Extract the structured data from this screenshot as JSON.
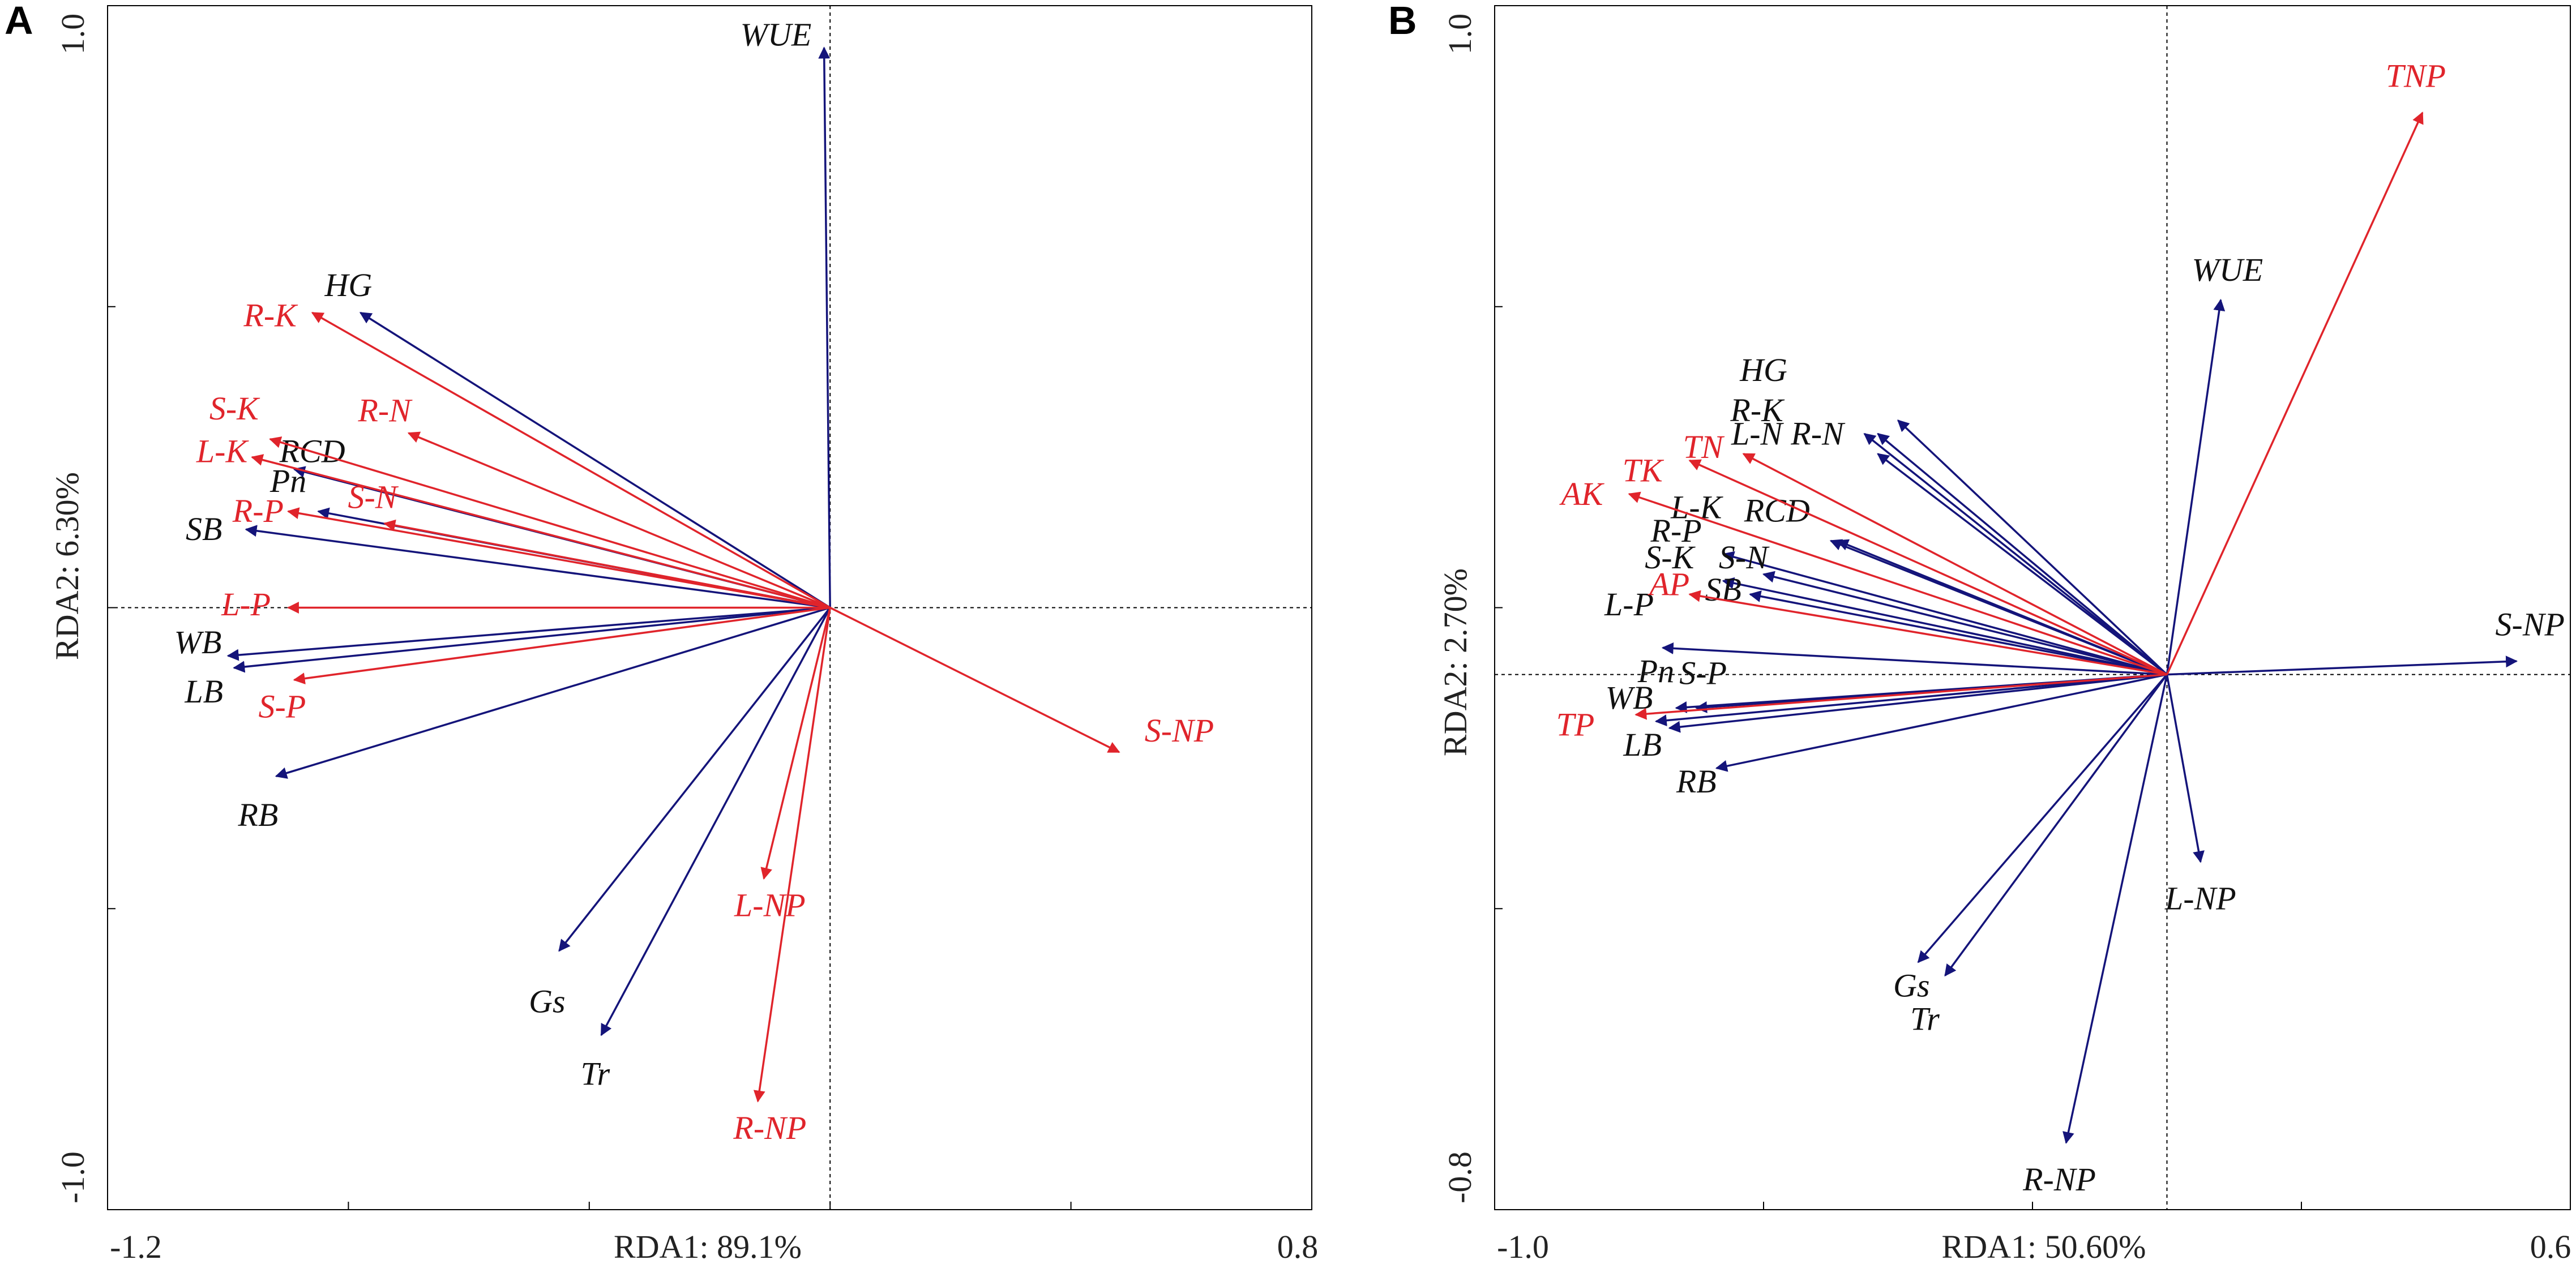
{
  "colors": {
    "species_vector": "#14147a",
    "species_label": "#111111",
    "environment_vector": "#e0242b",
    "environment_label": "#e0242b"
  },
  "chart_data": [
    {
      "type": "biplot",
      "panel_label": "A",
      "xlabel": "RDA1: 89.1%",
      "ylabel": "RDA2: 6.30%",
      "xlim": [
        -1.2,
        0.8
      ],
      "ylim": [
        -1.0,
        1.0
      ],
      "x_tick_labels": [
        "-1.2",
        "0.8"
      ],
      "y_tick_labels": [
        "1.0",
        "-1.0"
      ],
      "vectors": [
        {
          "name": "WUE",
          "group": "response",
          "x": -0.01,
          "y": 0.93,
          "lx": -0.09,
          "ly": 0.946
        },
        {
          "name": "HG",
          "group": "response",
          "x": -0.78,
          "y": 0.49,
          "lx": -0.8,
          "ly": 0.53
        },
        {
          "name": "RCD",
          "group": "response",
          "x": -0.89,
          "y": 0.23,
          "lx": -0.86,
          "ly": 0.254
        },
        {
          "name": "Pn",
          "group": "response",
          "x": -0.85,
          "y": 0.16,
          "lx": -0.9,
          "ly": 0.205
        },
        {
          "name": "SB",
          "group": "response",
          "x": -0.97,
          "y": 0.13,
          "lx": -1.04,
          "ly": 0.125
        },
        {
          "name": "WB",
          "group": "response",
          "x": -1.0,
          "y": -0.08,
          "lx": -1.05,
          "ly": -0.063
        },
        {
          "name": "LB",
          "group": "response",
          "x": -0.99,
          "y": -0.1,
          "lx": -1.04,
          "ly": -0.145
        },
        {
          "name": "RB",
          "group": "response",
          "x": -0.92,
          "y": -0.28,
          "lx": -0.95,
          "ly": -0.35
        },
        {
          "name": "Gs",
          "group": "response",
          "x": -0.45,
          "y": -0.57,
          "lx": -0.47,
          "ly": -0.66
        },
        {
          "name": "Tr",
          "group": "response",
          "x": -0.38,
          "y": -0.71,
          "lx": -0.39,
          "ly": -0.78
        },
        {
          "name": "R-K",
          "group": "environment",
          "x": -0.86,
          "y": 0.49,
          "lx": -0.93,
          "ly": 0.48
        },
        {
          "name": "S-K",
          "group": "environment",
          "x": -0.93,
          "y": 0.28,
          "lx": -0.99,
          "ly": 0.325
        },
        {
          "name": "L-K",
          "group": "environment",
          "x": -0.96,
          "y": 0.25,
          "lx": -1.01,
          "ly": 0.254
        },
        {
          "name": "R-N",
          "group": "environment",
          "x": -0.7,
          "y": 0.29,
          "lx": -0.74,
          "ly": 0.322
        },
        {
          "name": "S-N",
          "group": "environment",
          "x": -0.74,
          "y": 0.14,
          "lx": -0.76,
          "ly": 0.178
        },
        {
          "name": "R-P",
          "group": "environment",
          "x": -0.9,
          "y": 0.16,
          "lx": -0.95,
          "ly": 0.155
        },
        {
          "name": "L-P",
          "group": "environment",
          "x": -0.9,
          "y": 0.0,
          "lx": -0.97,
          "ly": 0.0
        },
        {
          "name": "S-P",
          "group": "environment",
          "x": -0.89,
          "y": -0.12,
          "lx": -0.91,
          "ly": -0.17
        },
        {
          "name": "S-NP",
          "group": "environment",
          "x": 0.48,
          "y": -0.24,
          "lx": 0.58,
          "ly": -0.21
        },
        {
          "name": "L-NP",
          "group": "environment",
          "x": -0.11,
          "y": -0.45,
          "lx": -0.1,
          "ly": -0.5
        },
        {
          "name": "R-NP",
          "group": "environment",
          "x": -0.12,
          "y": -0.82,
          "lx": -0.1,
          "ly": -0.87
        }
      ]
    },
    {
      "type": "biplot",
      "panel_label": "B",
      "xlabel": "RDA1: 50.60%",
      "ylabel": "RDA2: 2.70%",
      "xlim": [
        -1.0,
        0.6
      ],
      "ylim": [
        -0.8,
        1.0
      ],
      "x_tick_labels": [
        "-1.0",
        "0.6"
      ],
      "y_tick_labels": [
        "1.0",
        "-0.8"
      ],
      "vectors": [
        {
          "name": "WUE",
          "group": "response",
          "x": 0.08,
          "y": 0.56,
          "lx": 0.09,
          "ly": 0.6
        },
        {
          "name": "HG",
          "group": "response",
          "x": -0.4,
          "y": 0.38,
          "lx": -0.6,
          "ly": 0.45
        },
        {
          "name": "R-K",
          "group": "response",
          "x": -0.43,
          "y": 0.33,
          "lx": -0.61,
          "ly": 0.39
        },
        {
          "name": "L-N",
          "group": "response",
          "x": -0.45,
          "y": 0.36,
          "lx": -0.61,
          "ly": 0.355
        },
        {
          "name": "R-N",
          "group": "response",
          "x": -0.43,
          "y": 0.36,
          "lx": -0.52,
          "ly": 0.355
        },
        {
          "name": "L-K",
          "group": "response",
          "x": -0.5,
          "y": 0.2,
          "lx": -0.7,
          "ly": 0.245
        },
        {
          "name": "RCD",
          "group": "response",
          "x": -0.49,
          "y": 0.2,
          "lx": -0.58,
          "ly": 0.24
        },
        {
          "name": "R-P",
          "group": "response",
          "x": -0.66,
          "y": 0.18,
          "lx": -0.73,
          "ly": 0.21
        },
        {
          "name": "S-K",
          "group": "response",
          "x": -0.66,
          "y": 0.14,
          "lx": -0.74,
          "ly": 0.17
        },
        {
          "name": "S-N",
          "group": "response",
          "x": -0.6,
          "y": 0.15,
          "lx": -0.63,
          "ly": 0.17
        },
        {
          "name": "SB",
          "group": "response",
          "x": -0.62,
          "y": 0.12,
          "lx": -0.66,
          "ly": 0.122
        },
        {
          "name": "L-P",
          "group": "response",
          "x": -0.75,
          "y": 0.04,
          "lx": -0.8,
          "ly": 0.1
        },
        {
          "name": "Pn",
          "group": "response",
          "x": -0.73,
          "y": -0.05,
          "lx": -0.76,
          "ly": -0.0
        },
        {
          "name": "S-P",
          "group": "response",
          "x": -0.7,
          "y": -0.05,
          "lx": -0.69,
          "ly": -0.003
        },
        {
          "name": "WB",
          "group": "response",
          "x": -0.76,
          "y": -0.07,
          "lx": -0.8,
          "ly": -0.04
        },
        {
          "name": "LB",
          "group": "response",
          "x": -0.74,
          "y": -0.08,
          "lx": -0.78,
          "ly": -0.11
        },
        {
          "name": "RB",
          "group": "response",
          "x": -0.67,
          "y": -0.14,
          "lx": -0.7,
          "ly": -0.165
        },
        {
          "name": "S-NP",
          "group": "response",
          "x": 0.52,
          "y": 0.02,
          "lx": 0.54,
          "ly": 0.07
        },
        {
          "name": "L-NP",
          "group": "response",
          "x": 0.05,
          "y": -0.28,
          "lx": 0.05,
          "ly": -0.34
        },
        {
          "name": "Gs",
          "group": "response",
          "x": -0.37,
          "y": -0.43,
          "lx": -0.38,
          "ly": -0.47
        },
        {
          "name": "Tr",
          "group": "response",
          "x": -0.33,
          "y": -0.45,
          "lx": -0.36,
          "ly": -0.52
        },
        {
          "name": "R-NP",
          "group": "response",
          "x": -0.15,
          "y": -0.7,
          "lx": -0.16,
          "ly": -0.76
        },
        {
          "name": "TNP",
          "group": "environment",
          "x": 0.38,
          "y": 0.84,
          "lx": 0.37,
          "ly": 0.89
        },
        {
          "name": "TN",
          "group": "environment",
          "x": -0.63,
          "y": 0.33,
          "lx": -0.69,
          "ly": 0.335
        },
        {
          "name": "TK",
          "group": "environment",
          "x": -0.71,
          "y": 0.32,
          "lx": -0.78,
          "ly": 0.3
        },
        {
          "name": "AK",
          "group": "environment",
          "x": -0.8,
          "y": 0.27,
          "lx": -0.87,
          "ly": 0.265
        },
        {
          "name": "AP",
          "group": "environment",
          "x": -0.71,
          "y": 0.12,
          "lx": -0.74,
          "ly": 0.13
        },
        {
          "name": "TP",
          "group": "environment",
          "x": -0.79,
          "y": -0.06,
          "lx": -0.88,
          "ly": -0.08
        }
      ]
    }
  ]
}
